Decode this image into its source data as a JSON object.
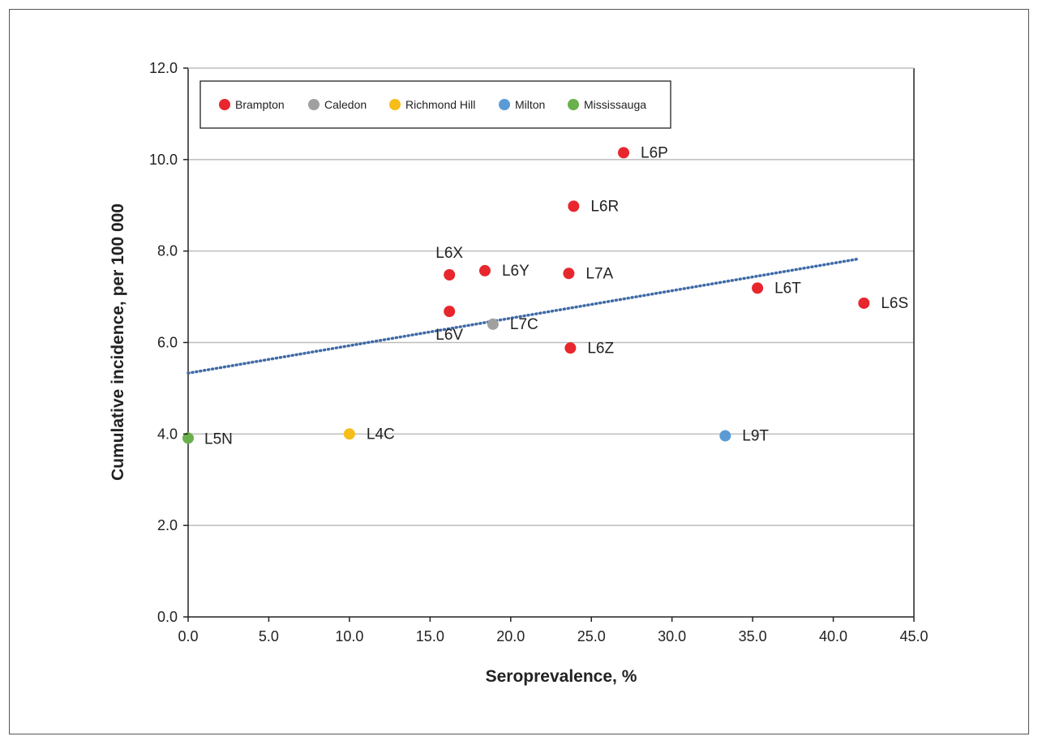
{
  "chart_data": {
    "type": "scatter",
    "xlabel": "Seroprevalence, %",
    "ylabel": "Cumulative incidence, per 100 000",
    "xlim": [
      0,
      45
    ],
    "ylim": [
      0,
      12
    ],
    "x_ticks": [
      "0.0",
      "5.0",
      "10.0",
      "15.0",
      "20.0",
      "25.0",
      "30.0",
      "35.0",
      "40.0",
      "45.0"
    ],
    "y_ticks": [
      "0.0",
      "2.0",
      "4.0",
      "6.0",
      "8.0",
      "10.0",
      "12.0"
    ],
    "grid": "horizontal",
    "legend_position": "top-left",
    "series": [
      {
        "name": "Brampton",
        "color": "#e8262d",
        "points": [
          {
            "label": "L6P",
            "x": 27.0,
            "y": 10.15
          },
          {
            "label": "L6R",
            "x": 23.9,
            "y": 8.98
          },
          {
            "label": "L6X",
            "x": 16.2,
            "y": 7.48
          },
          {
            "label": "L6Y",
            "x": 18.4,
            "y": 7.57
          },
          {
            "label": "L7A",
            "x": 23.6,
            "y": 7.51
          },
          {
            "label": "L6V",
            "x": 16.2,
            "y": 6.68
          },
          {
            "label": "L6Z",
            "x": 23.7,
            "y": 5.88
          },
          {
            "label": "L6T",
            "x": 35.3,
            "y": 7.19
          },
          {
            "label": "L6S",
            "x": 41.9,
            "y": 6.86
          }
        ]
      },
      {
        "name": "Caledon",
        "color": "#a0a0a0",
        "points": [
          {
            "label": "L7C",
            "x": 18.9,
            "y": 6.4
          }
        ]
      },
      {
        "name": "Richmond Hill",
        "color": "#f7bd1a",
        "points": [
          {
            "label": "L4C",
            "x": 10.0,
            "y": 4.0
          }
        ]
      },
      {
        "name": "Milton",
        "color": "#5b9bd5",
        "points": [
          {
            "label": "L9T",
            "x": 33.3,
            "y": 3.96
          }
        ]
      },
      {
        "name": "Mississauga",
        "color": "#6ab04c",
        "points": [
          {
            "label": "L5N",
            "x": 0.0,
            "y": 3.91
          }
        ]
      }
    ],
    "trendline": {
      "style": "dotted",
      "color": "#3e6aa8",
      "x": [
        0.0,
        41.6
      ],
      "y": [
        5.33,
        7.83
      ]
    }
  }
}
